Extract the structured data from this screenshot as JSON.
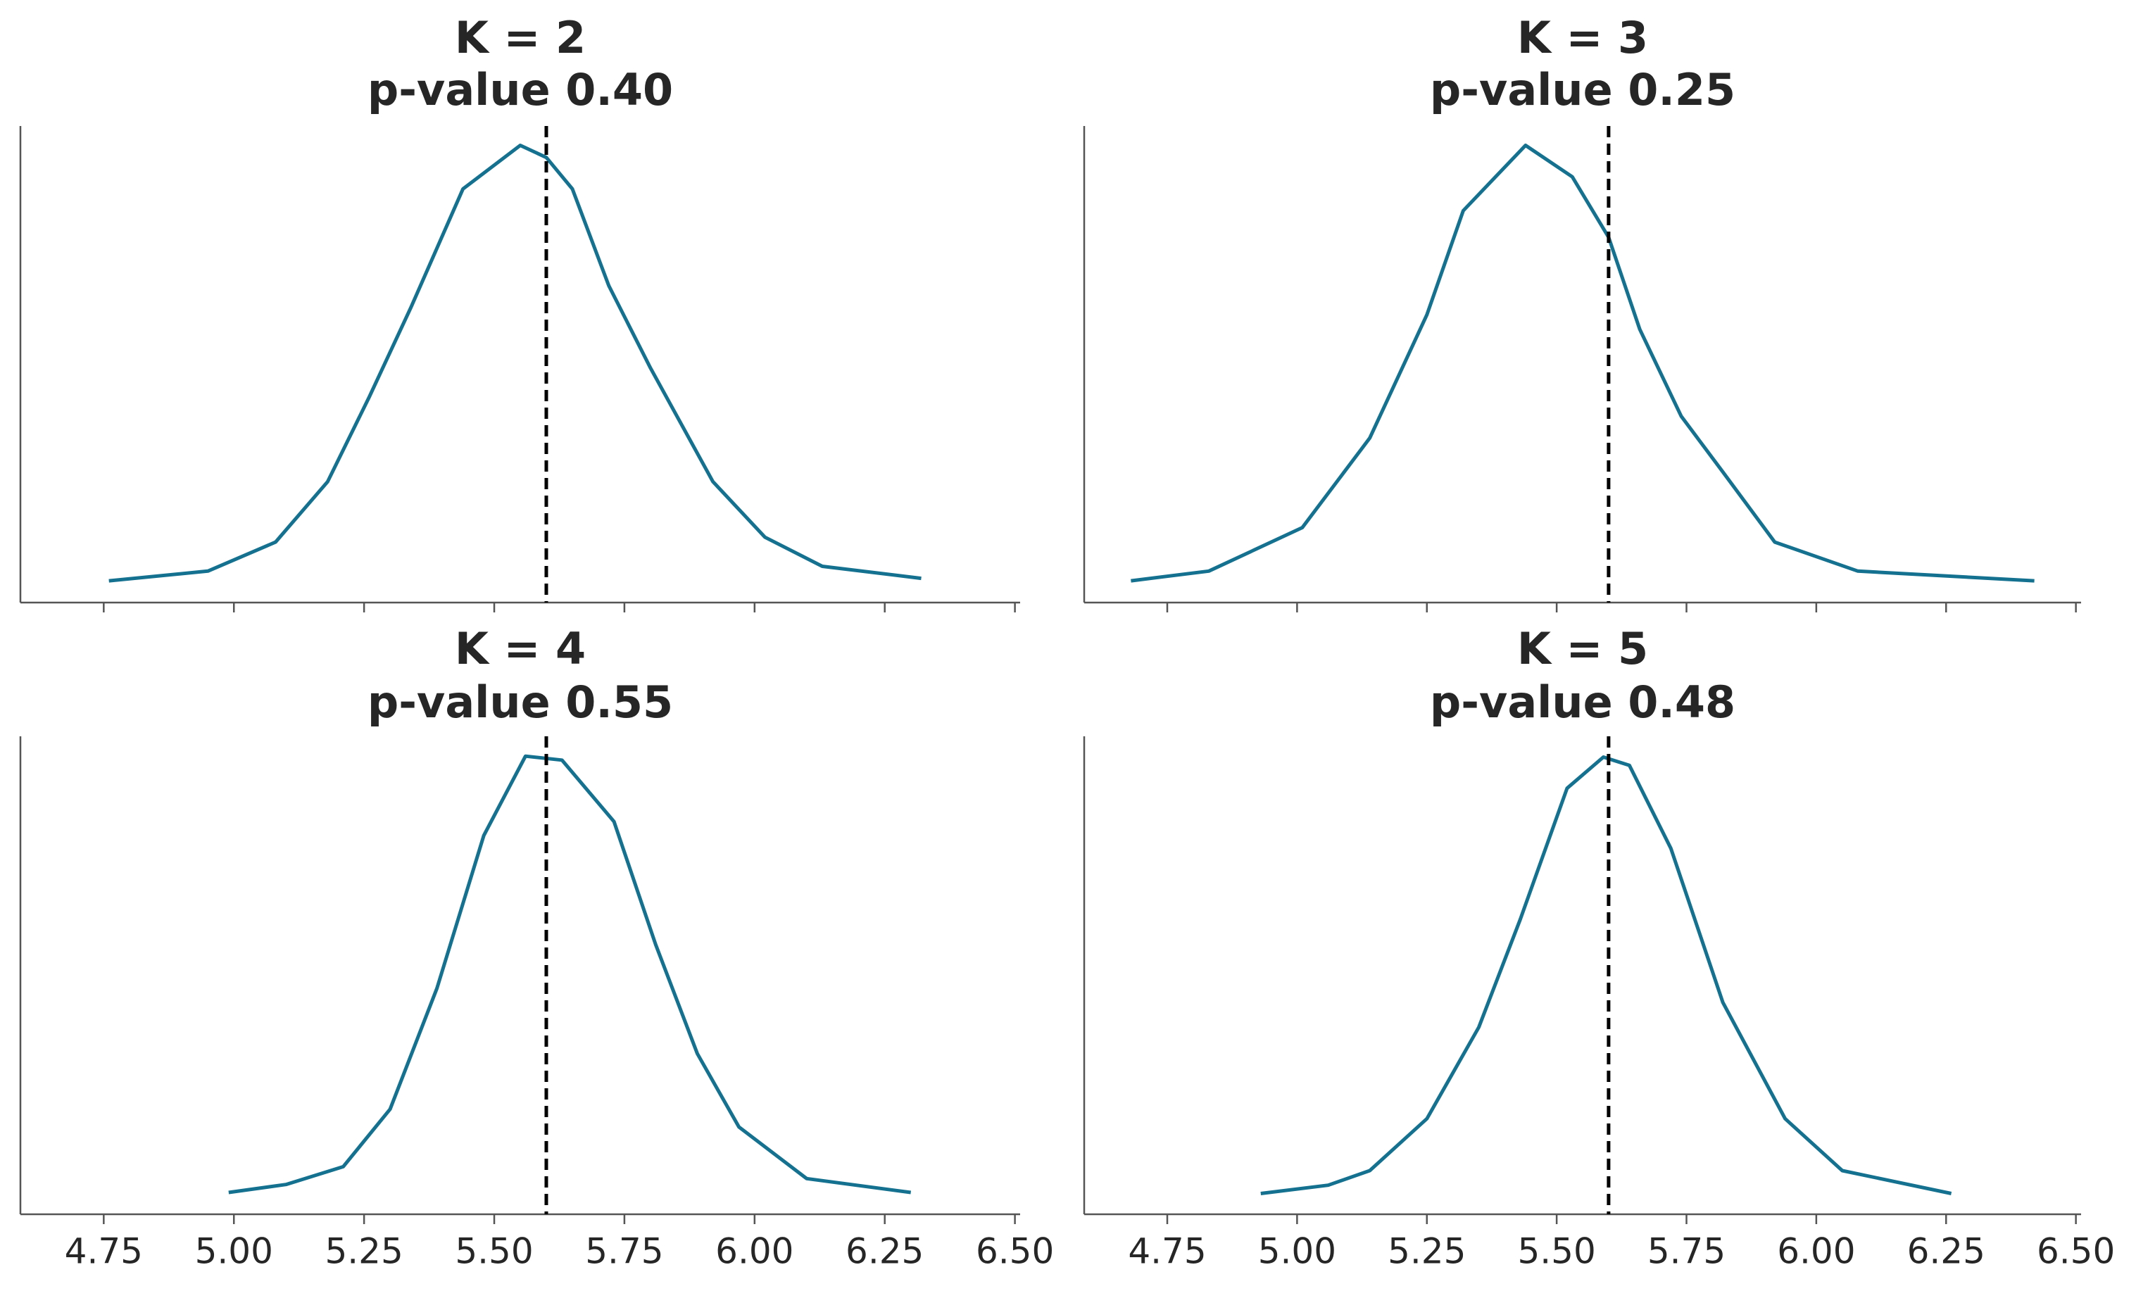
{
  "chart_data": [
    {
      "type": "kde",
      "title": "K = 2",
      "subtitle": "p-value 0.40",
      "color": "#14718f",
      "ref_line": 5.6,
      "ref_color": "#000000",
      "xtick_labels": false,
      "x": [
        4.76,
        4.95,
        5.08,
        5.18,
        5.26,
        5.34,
        5.44,
        5.55,
        5.6,
        5.65,
        5.72,
        5.8,
        5.92,
        6.02,
        6.13,
        6.32
      ],
      "values": [
        0,
        0.04,
        0.16,
        0.41,
        0.76,
        1.13,
        1.62,
        1.8,
        1.75,
        1.62,
        1.22,
        0.88,
        0.41,
        0.18,
        0.06,
        0.01
      ],
      "xlim": [
        4.59,
        6.51
      ],
      "ylim": [
        -0.09,
        1.88
      ],
      "xticks": [
        4.75,
        {
          "value": 5.0,
          "label": "5.00"
        },
        5.25,
        {
          "value": 5.5,
          "label": "5.50"
        },
        5.75,
        {
          "value": 6.0,
          "label": "6.00"
        },
        6.25,
        {
          "value": 6.5,
          "label": "6.50"
        }
      ]
    },
    {
      "type": "kde",
      "title": "K = 3",
      "subtitle": "p-value 0.25",
      "color": "#14718f",
      "ref_line": 5.6,
      "ref_color": "#000000",
      "xtick_labels": false,
      "x": [
        4.68,
        4.83,
        5.01,
        5.14,
        5.25,
        5.32,
        5.44,
        5.53,
        5.6,
        5.66,
        5.74,
        5.82,
        5.92,
        6.08,
        6.42
      ],
      "values": [
        0,
        0.04,
        0.22,
        0.59,
        1.1,
        1.53,
        1.8,
        1.67,
        1.42,
        1.04,
        0.68,
        0.45,
        0.16,
        0.04,
        0
      ],
      "xlim": [
        4.59,
        6.51
      ],
      "ylim": [
        -0.09,
        1.88
      ],
      "xticks": [
        4.75,
        {
          "value": 5.0,
          "label": "5.00"
        },
        5.25,
        {
          "value": 5.5,
          "label": "5.50"
        },
        5.75,
        {
          "value": 6.0,
          "label": "6.00"
        },
        6.25,
        {
          "value": 6.5,
          "label": "6.50"
        }
      ]
    },
    {
      "type": "kde",
      "title": "K = 4",
      "subtitle": "p-value 0.55",
      "color": "#14718f",
      "ref_line": 5.6,
      "ref_color": "#000000",
      "xtick_labels": true,
      "x": [
        4.99,
        5.1,
        5.21,
        5.3,
        5.39,
        5.48,
        5.56,
        5.63,
        5.73,
        5.81,
        5.89,
        5.97,
        6.1,
        6.3
      ],
      "values": [
        0,
        0.04,
        0.13,
        0.42,
        1.03,
        1.8,
        2.2,
        2.18,
        1.87,
        1.25,
        0.7,
        0.33,
        0.07,
        0
      ],
      "xlim": [
        4.59,
        6.51
      ],
      "ylim": [
        -0.11,
        2.3
      ],
      "xticks": [
        4.75,
        {
          "value": 5.0,
          "label": "5.00"
        },
        5.25,
        {
          "value": 5.5,
          "label": "5.50"
        },
        5.75,
        {
          "value": 6.0,
          "label": "6.00"
        },
        6.25,
        {
          "value": 6.5,
          "label": "6.50"
        }
      ]
    },
    {
      "type": "kde",
      "title": "K = 5",
      "subtitle": "p-value 0.48",
      "color": "#14718f",
      "ref_line": 5.6,
      "ref_color": "#000000",
      "xtick_labels": true,
      "x": [
        4.93,
        5.06,
        5.14,
        5.25,
        5.35,
        5.43,
        5.52,
        5.59,
        5.64,
        5.72,
        5.82,
        5.94,
        6.05,
        6.26
      ],
      "values": [
        0,
        0.04,
        0.11,
        0.36,
        0.8,
        1.32,
        1.95,
        2.1,
        2.06,
        1.66,
        0.92,
        0.36,
        0.11,
        0
      ],
      "xlim": [
        4.59,
        6.51
      ],
      "ylim": [
        -0.1,
        2.2
      ],
      "xticks": [
        4.75,
        {
          "value": 5.0,
          "label": "5.00"
        },
        5.25,
        {
          "value": 5.5,
          "label": "5.50"
        },
        5.75,
        {
          "value": 6.0,
          "label": "6.00"
        },
        6.25,
        {
          "value": 6.5,
          "label": "6.50"
        }
      ]
    }
  ]
}
